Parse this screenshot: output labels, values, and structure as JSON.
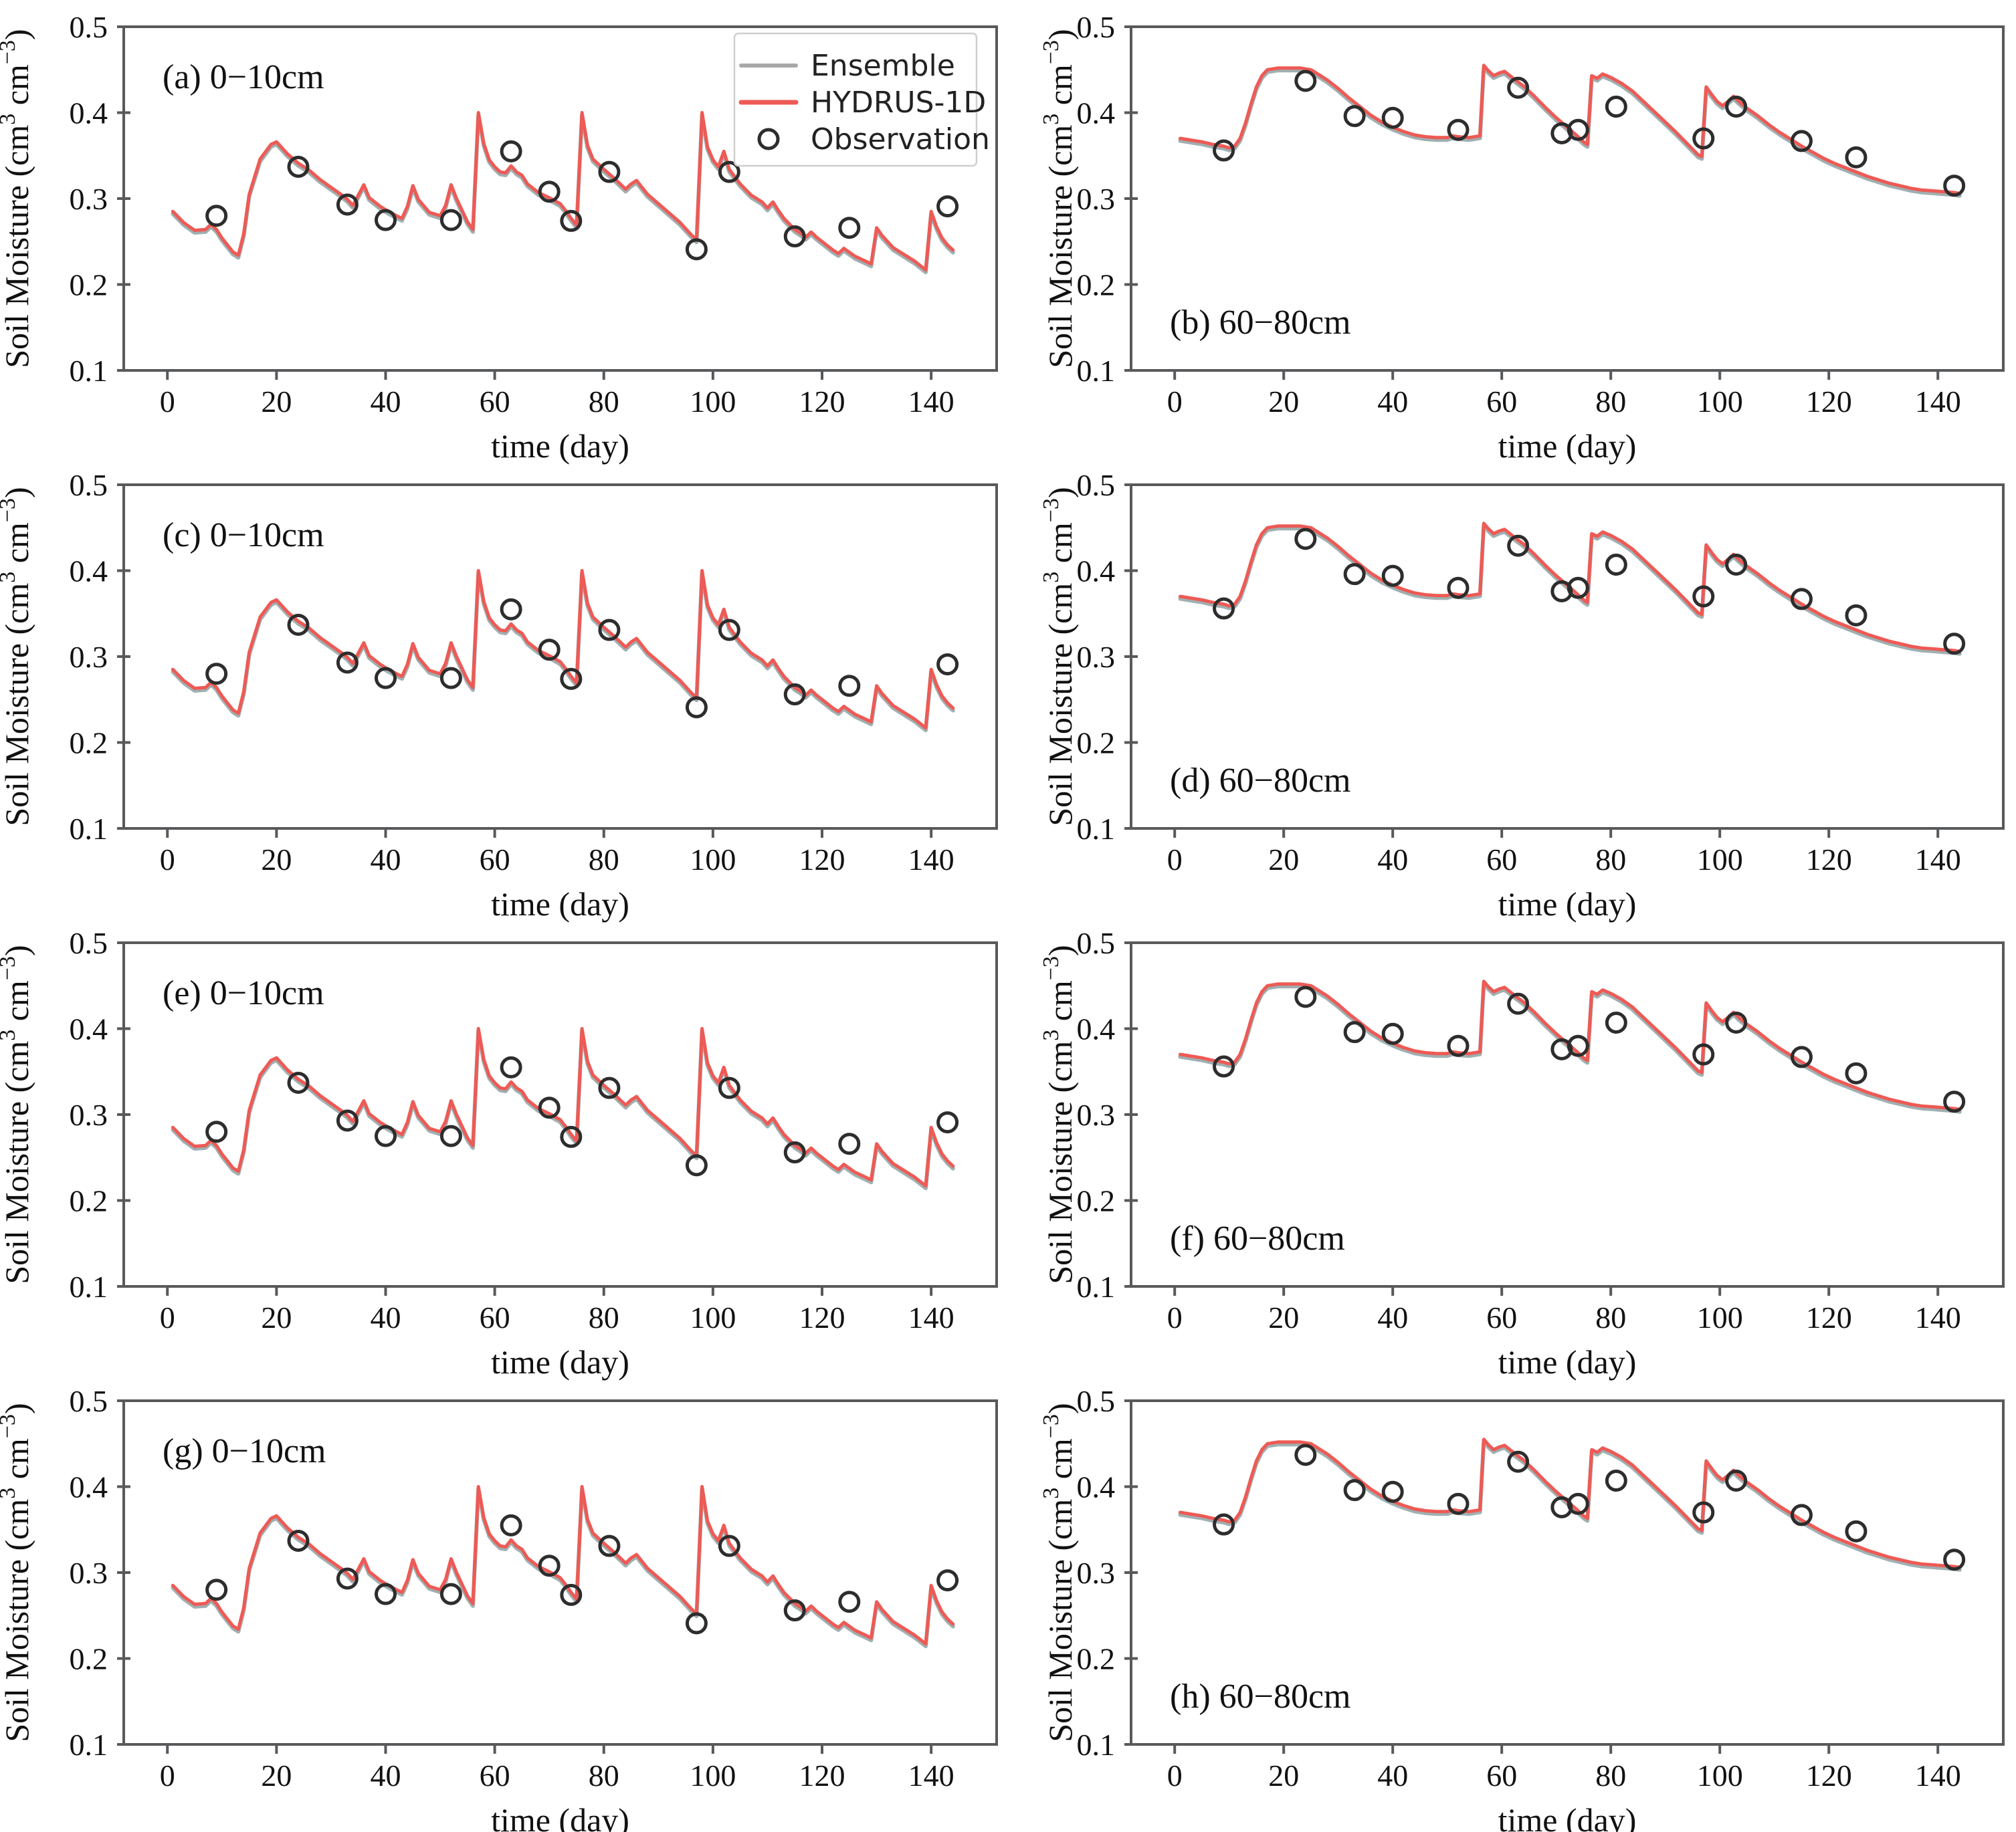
{
  "legend": {
    "entries": [
      {
        "label": "Ensemble",
        "color": "#a8a8a8",
        "marker": "line"
      },
      {
        "label": "HYDRUS-1D",
        "color": "#ee5a55",
        "marker": "line"
      },
      {
        "label": "Observation",
        "color": "#2d2d2d",
        "marker": "circle"
      }
    ]
  },
  "chart_data": {
    "type": "line",
    "x_axis": {
      "label": "time (day)",
      "range": [
        -8,
        152
      ],
      "ticks": [
        0,
        20,
        40,
        60,
        80,
        100,
        120,
        140
      ],
      "tick_labels": [
        "0",
        "20",
        "40",
        "60",
        "80",
        "100",
        "120",
        "140"
      ]
    },
    "y_axis": {
      "label": "Soil Moisture (cm³ cm⁻³)",
      "label_parts": [
        {
          "t": "Soil Moisture (cm"
        },
        {
          "t": "3",
          "sup": true
        },
        {
          "t": " cm"
        },
        {
          "t": "−3",
          "sup": true
        },
        {
          "t": ")"
        }
      ],
      "range": [
        0.1,
        0.5
      ],
      "ticks": [
        0.1,
        0.2,
        0.3,
        0.4,
        0.5
      ],
      "tick_labels": [
        "0.1",
        "0.2",
        "0.3",
        "0.4",
        "0.5"
      ]
    },
    "series_colors": {
      "ensemble": "#9fb0b2",
      "hydrus_1d": "#ee5a55",
      "observation": "#2d2d2d"
    },
    "datasets": {
      "surface_0_10cm": {
        "hydrus_1d": {
          "x": [
            1,
            3,
            5,
            7,
            8,
            9,
            10,
            12,
            13,
            14,
            15,
            17,
            19,
            20,
            22,
            24,
            26,
            28,
            30,
            32,
            33,
            34,
            36,
            37,
            39,
            40,
            42,
            43,
            44,
            45,
            46,
            48,
            50,
            51,
            52,
            53,
            55,
            56,
            57,
            58,
            59,
            60,
            61,
            62,
            63,
            64,
            65,
            66,
            68,
            70,
            72,
            73,
            74,
            75,
            76,
            77,
            78,
            80,
            82,
            84,
            85,
            86,
            88,
            90,
            92,
            94,
            96,
            97,
            98,
            99,
            100,
            101,
            102,
            103,
            105,
            107,
            109,
            110,
            111,
            112,
            113,
            115,
            116,
            117,
            118,
            119,
            121,
            122,
            123,
            124,
            126,
            128,
            129,
            130,
            131,
            133,
            135,
            137,
            139,
            140,
            141,
            142,
            143,
            144
          ],
          "y": [
            0.285,
            0.272,
            0.263,
            0.264,
            0.27,
            0.264,
            0.254,
            0.238,
            0.234,
            0.259,
            0.305,
            0.346,
            0.363,
            0.366,
            0.352,
            0.341,
            0.333,
            0.322,
            0.313,
            0.304,
            0.299,
            0.292,
            0.316,
            0.301,
            0.291,
            0.287,
            0.28,
            0.277,
            0.291,
            0.315,
            0.299,
            0.284,
            0.28,
            0.292,
            0.316,
            0.3,
            0.273,
            0.264,
            0.4,
            0.364,
            0.345,
            0.337,
            0.331,
            0.33,
            0.338,
            0.331,
            0.327,
            0.317,
            0.307,
            0.301,
            0.294,
            0.286,
            0.277,
            0.269,
            0.4,
            0.362,
            0.346,
            0.334,
            0.323,
            0.311,
            0.317,
            0.321,
            0.305,
            0.294,
            0.283,
            0.272,
            0.258,
            0.252,
            0.4,
            0.36,
            0.345,
            0.337,
            0.355,
            0.334,
            0.317,
            0.304,
            0.296,
            0.289,
            0.296,
            0.286,
            0.277,
            0.264,
            0.26,
            0.255,
            0.261,
            0.255,
            0.245,
            0.24,
            0.236,
            0.242,
            0.233,
            0.227,
            0.224,
            0.266,
            0.257,
            0.243,
            0.235,
            0.227,
            0.217,
            0.285,
            0.267,
            0.254,
            0.246,
            0.24
          ]
        },
        "observation": {
          "x": [
            9,
            24,
            33,
            40,
            52,
            63,
            70,
            74,
            81,
            97,
            103,
            115,
            125,
            143
          ],
          "y": [
            0.28,
            0.337,
            0.293,
            0.275,
            0.275,
            0.355,
            0.308,
            0.274,
            0.331,
            0.241,
            0.331,
            0.256,
            0.266,
            0.291
          ]
        }
      },
      "deep_60_80cm": {
        "hydrus_1d": {
          "x": [
            1,
            3,
            5,
            7,
            9,
            10,
            11,
            12,
            13,
            14,
            15,
            16,
            17,
            19,
            21,
            23,
            25,
            26,
            28,
            30,
            32,
            34,
            36,
            38,
            40,
            42,
            44,
            46,
            48,
            50,
            51,
            52,
            54,
            56,
            56.7,
            57.5,
            58.5,
            59.5,
            60.5,
            61.5,
            62.5,
            64,
            66,
            68,
            70,
            72,
            74,
            75,
            75.7,
            76.5,
            77.5,
            78.5,
            80,
            82,
            84,
            86,
            88,
            90,
            92,
            94,
            96,
            96.7,
            97.5,
            98.5,
            99.5,
            100.5,
            101.5,
            102.5,
            103.5,
            105,
            107,
            109,
            111,
            113,
            115,
            117,
            119,
            121,
            123,
            125,
            127,
            129,
            131,
            133,
            135,
            137,
            139,
            141,
            143,
            144
          ],
          "y": [
            0.37,
            0.368,
            0.366,
            0.363,
            0.361,
            0.359,
            0.361,
            0.37,
            0.388,
            0.41,
            0.43,
            0.443,
            0.45,
            0.452,
            0.452,
            0.452,
            0.45,
            0.446,
            0.438,
            0.428,
            0.417,
            0.407,
            0.397,
            0.389,
            0.383,
            0.378,
            0.374,
            0.372,
            0.371,
            0.371,
            0.373,
            0.372,
            0.371,
            0.373,
            0.455,
            0.449,
            0.443,
            0.446,
            0.448,
            0.443,
            0.438,
            0.431,
            0.419,
            0.406,
            0.394,
            0.383,
            0.372,
            0.366,
            0.363,
            0.443,
            0.44,
            0.445,
            0.441,
            0.434,
            0.425,
            0.413,
            0.401,
            0.389,
            0.377,
            0.364,
            0.351,
            0.349,
            0.43,
            0.421,
            0.413,
            0.408,
            0.413,
            0.419,
            0.413,
            0.405,
            0.396,
            0.386,
            0.377,
            0.369,
            0.361,
            0.354,
            0.347,
            0.341,
            0.336,
            0.331,
            0.326,
            0.322,
            0.318,
            0.315,
            0.312,
            0.31,
            0.309,
            0.308,
            0.307,
            0.306
          ]
        },
        "observation": {
          "x": [
            9,
            24,
            33,
            40,
            52,
            63,
            71,
            74,
            81,
            97,
            103,
            115,
            125,
            143
          ],
          "y": [
            0.356,
            0.437,
            0.396,
            0.394,
            0.38,
            0.429,
            0.376,
            0.38,
            0.407,
            0.37,
            0.407,
            0.367,
            0.348,
            0.315
          ]
        }
      }
    },
    "panels": [
      {
        "id": "a",
        "label": "(a) 0−10cm",
        "dataset": "surface_0_10cm",
        "label_pos": "top",
        "legend": true
      },
      {
        "id": "b",
        "label": "(b) 60−80cm",
        "dataset": "deep_60_80cm",
        "label_pos": "bottom",
        "legend": false
      },
      {
        "id": "c",
        "label": "(c) 0−10cm",
        "dataset": "surface_0_10cm",
        "label_pos": "top",
        "legend": false
      },
      {
        "id": "d",
        "label": "(d) 60−80cm",
        "dataset": "deep_60_80cm",
        "label_pos": "bottom",
        "legend": false
      },
      {
        "id": "e",
        "label": "(e) 0−10cm",
        "dataset": "surface_0_10cm",
        "label_pos": "top",
        "legend": false
      },
      {
        "id": "f",
        "label": "(f) 60−80cm",
        "dataset": "deep_60_80cm",
        "label_pos": "bottom",
        "legend": false
      },
      {
        "id": "g",
        "label": "(g) 0−10cm",
        "dataset": "surface_0_10cm",
        "label_pos": "top",
        "legend": false
      },
      {
        "id": "h",
        "label": "(h) 60−80cm",
        "dataset": "deep_60_80cm",
        "label_pos": "bottom",
        "legend": false
      }
    ]
  }
}
